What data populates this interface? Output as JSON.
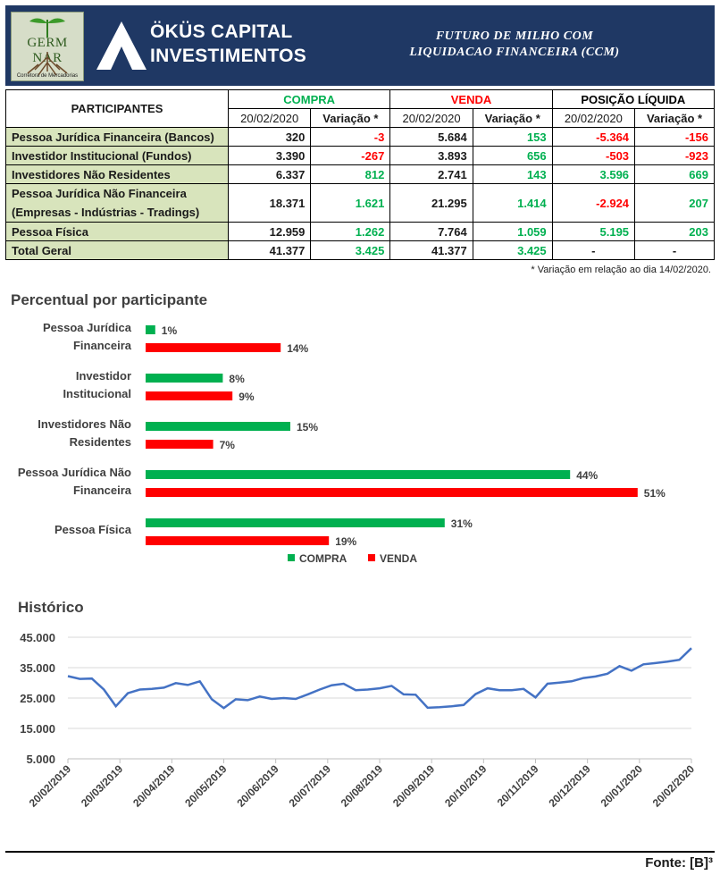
{
  "header": {
    "logo_text": "GERM NAR",
    "logo_sub": "Corretora de Mercadorias",
    "brand_line1": "ÖKÜS CAPITAL",
    "brand_line2": "INVESTIMENTOS",
    "title_line1": "FUTURO DE MILHO COM",
    "title_line2": "LIQUIDACAO FINANCEIRA (CCM)",
    "header_color": "#1f3864"
  },
  "table": {
    "col_participants": "PARTICIPANTES",
    "group_compra": "COMPRA",
    "group_venda": "VENDA",
    "group_posicao": "POSIÇÃO LÍQUIDA",
    "sub_date": "20/02/2020",
    "sub_var": "Variação *",
    "rows": [
      {
        "name": "Pessoa Jurídica Financeira (Bancos)",
        "compra": "320",
        "compra_var": "-3",
        "venda": "5.684",
        "venda_var": "153",
        "pos": "-5.364",
        "pos_var": "-156"
      },
      {
        "name": "Investidor Institucional (Fundos)",
        "compra": "3.390",
        "compra_var": "-267",
        "venda": "3.893",
        "venda_var": "656",
        "pos": "-503",
        "pos_var": "-923"
      },
      {
        "name": "Investidores Não Residentes",
        "compra": "6.337",
        "compra_var": "812",
        "venda": "2.741",
        "venda_var": "143",
        "pos": "3.596",
        "pos_var": "669"
      },
      {
        "name_line1": "Pessoa Jurídica Não Financeira",
        "name_line2": "(Empresas - Indústrias - Tradings)",
        "compra": "18.371",
        "compra_var": "1.621",
        "venda": "21.295",
        "venda_var": "1.414",
        "pos": "-2.924",
        "pos_var": "207"
      },
      {
        "name": "Pessoa Física",
        "compra": "12.959",
        "compra_var": "1.262",
        "venda": "7.764",
        "venda_var": "1.059",
        "pos": "5.195",
        "pos_var": "203"
      },
      {
        "name": "Total Geral",
        "compra": "41.377",
        "compra_var": "3.425",
        "venda": "41.377",
        "venda_var": "3.425",
        "pos": "-",
        "pos_var": "-"
      }
    ],
    "note": "* Variação em relação ao dia 14/02/2020."
  },
  "chart_data": [
    {
      "type": "bar",
      "orientation": "horizontal",
      "title": "Percentual por participante",
      "categories": [
        "Pessoa Jurídica Financeira",
        "Investidor Institucional",
        "Investidores Não Residentes",
        "Pessoa Jurídica Não Financeira",
        "Pessoa Física"
      ],
      "category_lines": [
        [
          "Pessoa Jurídica",
          "Financeira"
        ],
        [
          "Investidor",
          "Institucional"
        ],
        [
          "Investidores Não",
          "Residentes"
        ],
        [
          "Pessoa Jurídica Não",
          "Financeira"
        ],
        [
          "Pessoa Física"
        ]
      ],
      "series": [
        {
          "name": "COMPRA",
          "color": "#00b050",
          "values": [
            1,
            8,
            15,
            44,
            31
          ]
        },
        {
          "name": "VENDA",
          "color": "#ff0000",
          "values": [
            14,
            9,
            7,
            51,
            19
          ]
        }
      ],
      "value_suffix": "%",
      "legend": "bottom"
    },
    {
      "type": "line",
      "title": "Histórico",
      "color": "#4472c4",
      "ylim": [
        5000,
        45000
      ],
      "yticks": [
        5000,
        15000,
        25000,
        35000,
        45000
      ],
      "ytick_labels": [
        "5.000",
        "15.000",
        "25.000",
        "35.000",
        "45.000"
      ],
      "xtick_labels": [
        "20/02/2019",
        "20/03/2019",
        "20/04/2019",
        "20/05/2019",
        "20/06/2019",
        "20/07/2019",
        "20/08/2019",
        "20/09/2019",
        "20/10/2019",
        "20/11/2019",
        "20/12/2019",
        "20/01/2020",
        "20/02/2020"
      ],
      "values": [
        32200,
        31300,
        31400,
        27800,
        22300,
        26600,
        27800,
        28000,
        28400,
        29900,
        29300,
        30500,
        24600,
        21700,
        24600,
        24300,
        25500,
        24700,
        25000,
        24700,
        26200,
        27800,
        29200,
        29700,
        27600,
        27800,
        28200,
        29000,
        26200,
        26100,
        21800,
        22000,
        22300,
        22700,
        26300,
        28200,
        27600,
        27600,
        28000,
        25200,
        29700,
        30100,
        30500,
        31600,
        32100,
        33000,
        35500,
        34000,
        36100,
        36500,
        37000,
        37600,
        41400
      ]
    }
  ],
  "footer": {
    "source": "Fonte: [B]³"
  }
}
